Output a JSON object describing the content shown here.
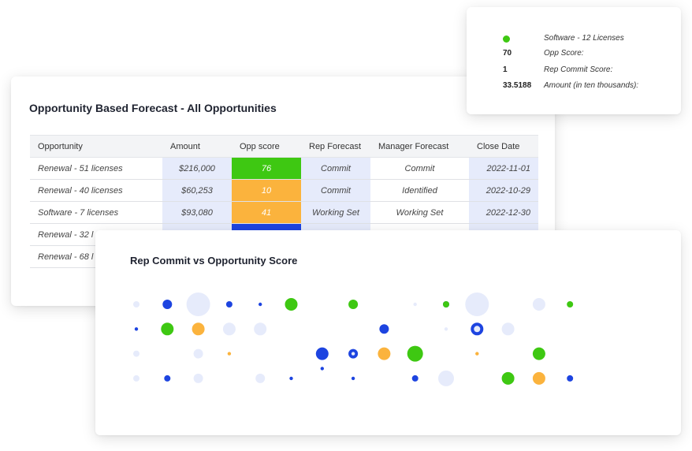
{
  "forecast": {
    "title": "Opportunity Based Forecast - All Opportunities",
    "columns": [
      "Opportunity",
      "Amount",
      "Opp score",
      "Rep Forecast",
      "Manager Forecast",
      "Close Date"
    ],
    "rows": [
      {
        "opportunity": "Renewal - 51 licenses",
        "amount": "$216,000",
        "score": "76",
        "score_color": "#3ec812",
        "rep": "Commit",
        "manager": "Commit",
        "date": "2022-11-01"
      },
      {
        "opportunity": "Renewal - 40 licenses",
        "amount": "$60,253",
        "score": "10",
        "score_color": "#fbb33d",
        "rep": "Commit",
        "manager": "Identified",
        "date": "2022-10-29"
      },
      {
        "opportunity": "Software - 7 licenses",
        "amount": "$93,080",
        "score": "41",
        "score_color": "#fbb33d",
        "rep": "Working Set",
        "manager": "Working Set",
        "date": "2022-12-30"
      },
      {
        "opportunity": "Renewal - 32 l",
        "amount": "",
        "score": "",
        "score_color": "#1d44e0",
        "rep": "",
        "manager": "",
        "date": ""
      },
      {
        "opportunity": "Renewal - 68 l",
        "amount": "",
        "score": "",
        "score_color": "",
        "rep": "",
        "manager": "",
        "date": ""
      }
    ]
  },
  "tooltip": {
    "series_color": "#3ec812",
    "series_label": "Software - 12 Licenses",
    "opp_score_value": "70",
    "opp_score_label": "Opp Score:",
    "rep_commit_value": "1",
    "rep_commit_label": "Rep Commit Score:",
    "amount_value": "33.5188",
    "amount_label": "Amount (in ten thousands):"
  },
  "scatter": {
    "title": "Rep Commit vs Opportunity Score",
    "colors": {
      "green": "#3ec812",
      "blue": "#1d44e0",
      "orange": "#fbb33d",
      "pale": "#e6ebfb"
    }
  },
  "chart_data": {
    "type": "scatter",
    "title": "Rep Commit vs Opportunity Score",
    "xlabel": "",
    "ylabel": "",
    "grid": false,
    "note": "Bubble chart without axes; points grouped by color class",
    "series": [
      {
        "color": "#1d44e0",
        "points": [
          [
            1,
            1,
            3
          ],
          [
            2,
            1,
            1
          ],
          [
            3,
            1,
            2
          ],
          [
            4,
            1,
            1
          ],
          [
            10,
            1,
            2
          ],
          [
            13,
            1,
            1
          ],
          [
            3,
            2,
            1
          ],
          [
            8,
            2,
            3
          ],
          [
            11,
            2,
            4
          ],
          [
            6,
            3,
            4
          ],
          [
            7,
            3,
            3
          ],
          [
            13,
            3,
            1
          ],
          [
            1,
            4,
            2
          ],
          [
            5,
            4,
            1
          ],
          [
            7,
            4,
            1
          ],
          [
            9,
            4,
            2
          ],
          [
            12,
            4,
            1
          ],
          [
            14,
            4,
            2
          ],
          [
            6,
            3.6,
            1
          ],
          [
            0,
            2,
            1
          ]
        ]
      },
      {
        "color": "#3ec812",
        "points": [
          [
            5,
            1,
            4
          ],
          [
            7,
            1,
            3
          ],
          [
            10,
            1,
            2
          ],
          [
            14,
            1,
            2
          ],
          [
            1,
            2,
            4
          ],
          [
            13,
            3,
            4
          ],
          [
            9,
            3,
            5
          ],
          [
            12,
            4,
            4
          ]
        ]
      },
      {
        "color": "#fbb33d",
        "points": [
          [
            2,
            2,
            4
          ],
          [
            0,
            3,
            1
          ],
          [
            3,
            3,
            1
          ],
          [
            8,
            3,
            4
          ],
          [
            11,
            3,
            1
          ],
          [
            13,
            4,
            4
          ]
        ]
      },
      {
        "color": "#e6ebfb",
        "points": [
          [
            0,
            1,
            2
          ],
          [
            2,
            1,
            6
          ],
          [
            9,
            1,
            1
          ],
          [
            11,
            1,
            6
          ],
          [
            13,
            1,
            4
          ],
          [
            3,
            2,
            4
          ],
          [
            4,
            2,
            4
          ],
          [
            10,
            2,
            1
          ],
          [
            11,
            2,
            2
          ],
          [
            12,
            2,
            4
          ],
          [
            0,
            3,
            2
          ],
          [
            2,
            3,
            3
          ],
          [
            7,
            3,
            1
          ],
          [
            0,
            4,
            2
          ],
          [
            2,
            4,
            3
          ],
          [
            4,
            4,
            3
          ],
          [
            10,
            4,
            5
          ]
        ]
      }
    ]
  }
}
